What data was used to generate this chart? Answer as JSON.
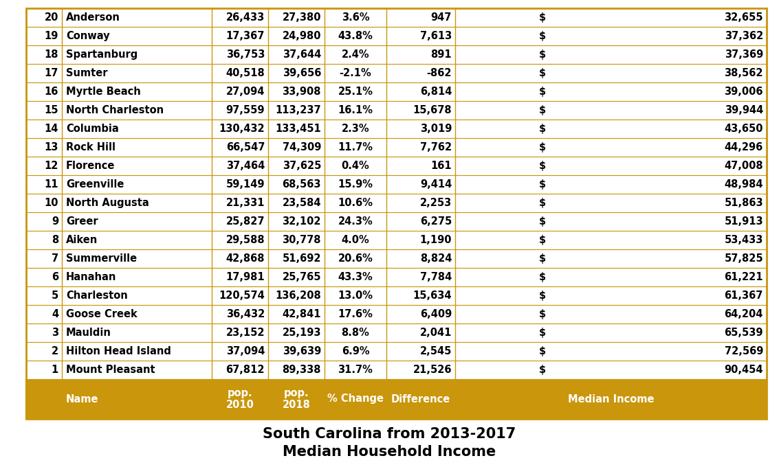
{
  "title_line1": "Median Household Income",
  "title_line2": "South Carolina from 2013-2017",
  "header_bg_color": "#C9960C",
  "header_text_color": "#FFFFFF",
  "border_color": "#C9960C",
  "text_color": "#000000",
  "col_header_line1": [
    "",
    "Name",
    "2010",
    "2018",
    "% Change",
    "Difference",
    "Median Income"
  ],
  "col_header_line2": [
    "",
    "",
    "pop.",
    "pop.",
    "",
    "",
    ""
  ],
  "rows": [
    [
      1,
      "Mount Pleasant",
      "67,812",
      "89,338",
      "31.7%",
      "21,526",
      "$",
      "90,454"
    ],
    [
      2,
      "Hilton Head Island",
      "37,094",
      "39,639",
      "6.9%",
      "2,545",
      "$",
      "72,569"
    ],
    [
      3,
      "Mauldin",
      "23,152",
      "25,193",
      "8.8%",
      "2,041",
      "$",
      "65,539"
    ],
    [
      4,
      "Goose Creek",
      "36,432",
      "42,841",
      "17.6%",
      "6,409",
      "$",
      "64,204"
    ],
    [
      5,
      "Charleston",
      "120,574",
      "136,208",
      "13.0%",
      "15,634",
      "$",
      "61,367"
    ],
    [
      6,
      "Hanahan",
      "17,981",
      "25,765",
      "43.3%",
      "7,784",
      "$",
      "61,221"
    ],
    [
      7,
      "Summerville",
      "42,868",
      "51,692",
      "20.6%",
      "8,824",
      "$",
      "57,825"
    ],
    [
      8,
      "Aiken",
      "29,588",
      "30,778",
      "4.0%",
      "1,190",
      "$",
      "53,433"
    ],
    [
      9,
      "Greer",
      "25,827",
      "32,102",
      "24.3%",
      "6,275",
      "$",
      "51,913"
    ],
    [
      10,
      "North Augusta",
      "21,331",
      "23,584",
      "10.6%",
      "2,253",
      "$",
      "51,863"
    ],
    [
      11,
      "Greenville",
      "59,149",
      "68,563",
      "15.9%",
      "9,414",
      "$",
      "48,984"
    ],
    [
      12,
      "Florence",
      "37,464",
      "37,625",
      "0.4%",
      "161",
      "$",
      "47,008"
    ],
    [
      13,
      "Rock Hill",
      "66,547",
      "74,309",
      "11.7%",
      "7,762",
      "$",
      "44,296"
    ],
    [
      14,
      "Columbia",
      "130,432",
      "133,451",
      "2.3%",
      "3,019",
      "$",
      "43,650"
    ],
    [
      15,
      "North Charleston",
      "97,559",
      "113,237",
      "16.1%",
      "15,678",
      "$",
      "39,944"
    ],
    [
      16,
      "Myrtle Beach",
      "27,094",
      "33,908",
      "25.1%",
      "6,814",
      "$",
      "39,006"
    ],
    [
      17,
      "Sumter",
      "40,518",
      "39,656",
      "-2.1%",
      "-862",
      "$",
      "38,562"
    ],
    [
      18,
      "Spartanburg",
      "36,753",
      "37,644",
      "2.4%",
      "891",
      "$",
      "37,369"
    ],
    [
      19,
      "Conway",
      "17,367",
      "24,980",
      "43.8%",
      "7,613",
      "$",
      "37,362"
    ],
    [
      20,
      "Anderson",
      "26,433",
      "27,380",
      "3.6%",
      "947",
      "$",
      "32,655"
    ]
  ],
  "title_fontsize": 15,
  "header_fontsize": 10.5,
  "cell_fontsize": 10.5
}
